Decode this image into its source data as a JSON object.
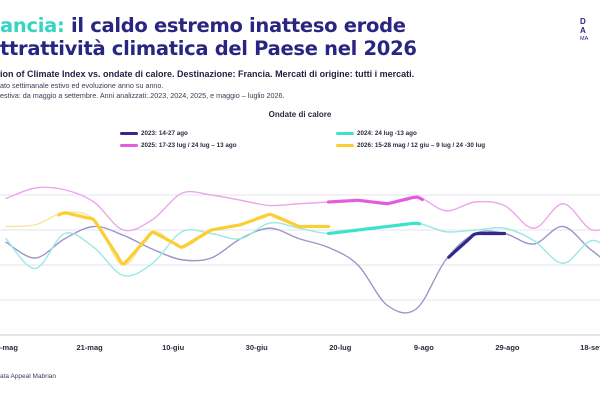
{
  "header": {
    "title_accent": "ancia:",
    "title_rest": " il caldo estremo inatteso erode",
    "title_line2": "ttrattività climatica del Paese nel 2026",
    "subtitle": "ion of Climate Index vs. ondate di calore. Destinazione: Francia. Mercati di origine: tutti i mercati.",
    "note1": "ato settimanale estivo ed evoluzione anno su anno.",
    "note2": "estiva: da maggio a settembre. Anni analizzati:.2023, 2024, 2025, e maggio – luglio 2026."
  },
  "logo": {
    "line1": "D",
    "line2": "A",
    "line3": "MA"
  },
  "legend": {
    "title": "Ondate di calore",
    "items": [
      {
        "label": "2023: 14-27 ago",
        "color": "#2f2a8c"
      },
      {
        "label": "2024: 24 lug -13 ago",
        "color": "#3ee0cf"
      },
      {
        "label": "2025: 17-23 lug / 24 lug – 13 ago",
        "color": "#e35ce0"
      },
      {
        "label": "2026: 15-28 mag / 12 giu – 9 lug / 24 -30 lug",
        "color": "#fbcf34"
      }
    ]
  },
  "source": "ata Appeal Mabrian",
  "chart_data": {
    "type": "line",
    "title": "",
    "xlabel": "",
    "ylabel": "",
    "x_ticks": [
      "-mag",
      "21-mag",
      "10-giu",
      "30-giu",
      "20-lug",
      "9-ago",
      "29-ago",
      "18-set"
    ],
    "x_tick_weeks": [
      0,
      2.85,
      5.7,
      8.55,
      11.4,
      14.25,
      17.1,
      19.95
    ],
    "y_range": [
      0,
      100
    ],
    "y_gridlines": [
      20,
      40,
      60,
      80
    ],
    "grid": true,
    "series": [
      {
        "name": "2023",
        "color": "#9a96c8",
        "highlight_color": "#2f2a8c",
        "values": [
          53,
          44,
          55,
          62,
          57,
          49,
          43,
          44,
          55,
          61,
          55,
          50,
          40,
          17,
          15,
          43,
          58,
          58,
          52,
          62,
          48,
          40,
          68,
          72
        ],
        "highlight_range": [
          15.1,
          17.0
        ]
      },
      {
        "name": "2024",
        "color": "#9be9e2",
        "highlight_color": "#3ee0cf",
        "values": [
          55,
          38,
          58,
          50,
          34,
          41,
          59,
          58,
          55,
          64,
          61,
          58,
          60,
          62,
          64,
          59,
          60,
          61,
          54,
          41,
          54,
          44,
          46,
          60
        ],
        "highlight_range": [
          11.0,
          14.1
        ]
      },
      {
        "name": "2025",
        "color": "#eaa7ec",
        "highlight_color": "#e35ce0",
        "values": [
          78,
          84,
          83,
          76,
          60,
          66,
          81,
          80,
          77,
          74,
          75,
          76,
          77,
          75,
          79,
          71,
          76,
          74,
          61,
          75,
          60,
          66,
          70,
          82
        ],
        "highlight_range": [
          11.0,
          14.2
        ]
      },
      {
        "name": "2026",
        "color": "#f9e3a0",
        "highlight_color": "#fbcf34",
        "values": [
          62,
          63,
          70,
          66,
          40,
          59,
          50,
          60,
          63,
          69,
          62
        ],
        "highlight_range": [
          1.8,
          11.0
        ]
      }
    ]
  }
}
